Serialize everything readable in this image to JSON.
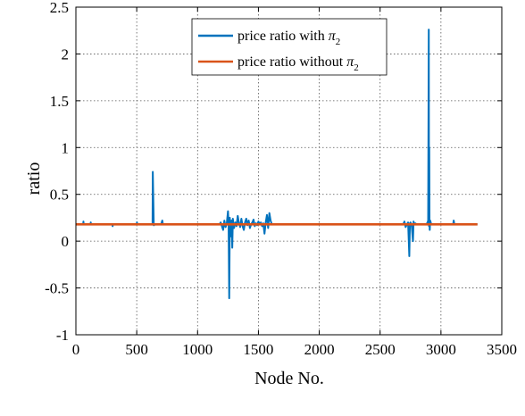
{
  "chart_data": {
    "type": "line",
    "xlabel": "Node No.",
    "ylabel": "ratio",
    "xlim": [
      0,
      3500
    ],
    "ylim": [
      -1,
      2.5
    ],
    "xticks": [
      0,
      500,
      1000,
      1500,
      2000,
      2500,
      3000,
      3500
    ],
    "yticks": [
      -1,
      -0.5,
      0,
      0.5,
      1,
      1.5,
      2,
      2.5
    ],
    "xtick_labels": [
      "0",
      "500",
      "1000",
      "1500",
      "2000",
      "2500",
      "3000",
      "3500"
    ],
    "ytick_labels": [
      "-1",
      "-0.5",
      "0",
      "0.5",
      "1",
      "1.5",
      "2",
      "2.5"
    ],
    "grid": true,
    "legend_position": "top-center",
    "series": [
      {
        "name_prefix": "price ratio with ",
        "name_symbol": "π",
        "name_subscript": "2",
        "color": "#0072BD",
        "x": [
          0,
          60,
          62,
          64,
          120,
          122,
          124,
          300,
          302,
          304,
          500,
          502,
          504,
          620,
          630,
          632,
          640,
          650,
          700,
          710,
          715,
          720,
          1180,
          1190,
          1200,
          1210,
          1220,
          1230,
          1240,
          1250,
          1255,
          1260,
          1265,
          1270,
          1275,
          1280,
          1285,
          1290,
          1295,
          1300,
          1310,
          1320,
          1330,
          1340,
          1350,
          1360,
          1370,
          1380,
          1390,
          1400,
          1410,
          1420,
          1430,
          1440,
          1450,
          1460,
          1470,
          1480,
          1490,
          1500,
          1510,
          1520,
          1530,
          1540,
          1550,
          1560,
          1570,
          1580,
          1590,
          1600,
          1610,
          1620,
          2690,
          2700,
          2710,
          2720,
          2730,
          2740,
          2745,
          2750,
          2760,
          2770,
          2775,
          2780,
          2790,
          2800,
          2810,
          2820,
          2880,
          2890,
          2895,
          2900,
          2902,
          2904,
          2906,
          2908,
          2912,
          2920,
          2930,
          2940,
          3100,
          3105,
          3110,
          3300
        ],
        "y": [
          0.18,
          0.18,
          0.21,
          0.18,
          0.18,
          0.2,
          0.18,
          0.18,
          0.16,
          0.18,
          0.18,
          0.2,
          0.18,
          0.18,
          0.18,
          0.74,
          0.17,
          0.18,
          0.18,
          0.22,
          0.18,
          0.18,
          0.18,
          0.2,
          0.16,
          0.12,
          0.22,
          0.15,
          0.19,
          0.32,
          0.18,
          -0.61,
          0.25,
          0.05,
          0.2,
          0.22,
          -0.07,
          0.24,
          0.18,
          0.14,
          0.2,
          0.16,
          0.27,
          0.19,
          0.15,
          0.24,
          0.16,
          0.12,
          0.2,
          0.24,
          0.17,
          0.22,
          0.14,
          0.18,
          0.2,
          0.23,
          0.16,
          0.19,
          0.17,
          0.21,
          0.18,
          0.2,
          0.16,
          0.19,
          0.08,
          0.2,
          0.28,
          0.14,
          0.3,
          0.22,
          0.18,
          0.18,
          0.18,
          0.21,
          0.15,
          0.18,
          0.2,
          -0.16,
          0.19,
          0.2,
          0.16,
          0.0,
          0.21,
          0.18,
          0.19,
          0.18,
          0.18,
          0.18,
          0.18,
          0.2,
          0.22,
          2.26,
          0.16,
          1.0,
          0.18,
          0.12,
          0.22,
          0.18,
          0.18,
          0.18,
          0.18,
          0.22,
          0.18,
          0.18
        ]
      },
      {
        "name_prefix": "price ratio without ",
        "name_symbol": "π",
        "name_subscript": "2",
        "color": "#D95319",
        "x": [
          0,
          3300
        ],
        "y": [
          0.18,
          0.18
        ]
      }
    ]
  }
}
